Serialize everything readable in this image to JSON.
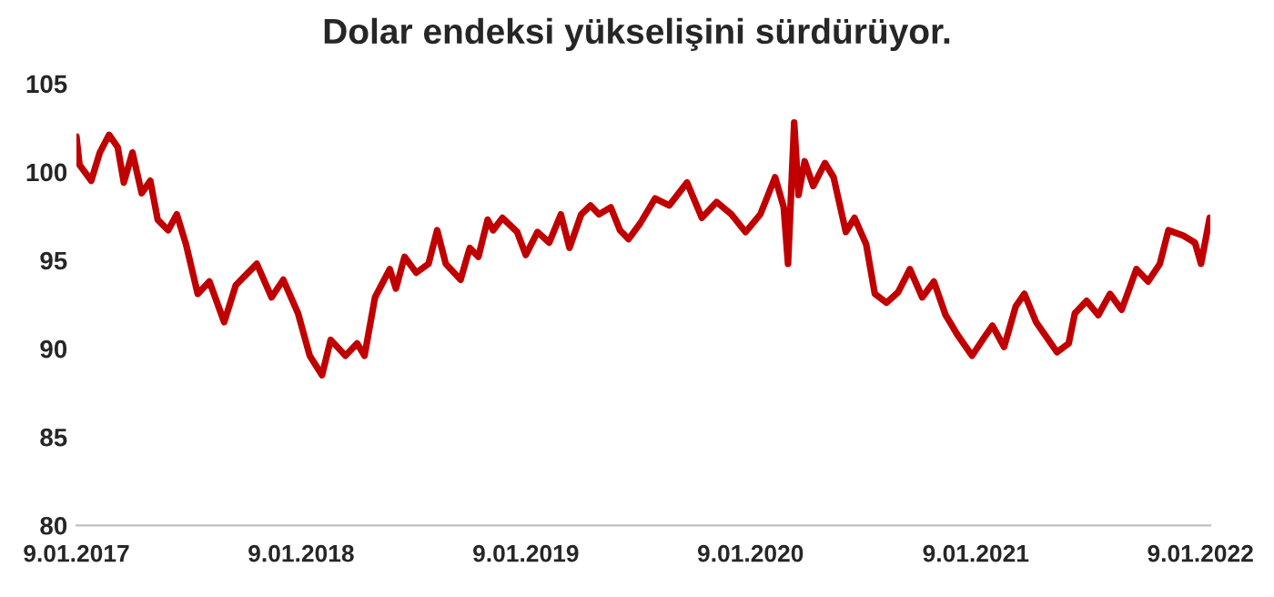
{
  "chart_data": {
    "type": "line",
    "title": "Dolar endeksi yükselişini sürdürüyor.",
    "x": [
      "2017-01-09",
      "2017-01-14",
      "2017-02-02",
      "2017-02-16",
      "2017-03-03",
      "2017-03-17",
      "2017-03-27",
      "2017-04-10",
      "2017-04-25",
      "2017-05-09",
      "2017-05-21",
      "2017-06-07",
      "2017-06-21",
      "2017-07-06",
      "2017-07-25",
      "2017-08-13",
      "2017-09-06",
      "2017-09-25",
      "2017-10-29",
      "2017-11-22",
      "2017-12-11",
      "2018-01-04",
      "2018-01-23",
      "2018-02-12",
      "2018-02-26",
      "2018-03-22",
      "2018-04-10",
      "2018-04-22",
      "2018-05-09",
      "2018-06-02",
      "2018-06-12",
      "2018-06-26",
      "2018-07-15",
      "2018-08-04",
      "2018-08-18",
      "2018-09-01",
      "2018-09-25",
      "2018-10-10",
      "2018-10-24",
      "2018-11-08",
      "2018-11-17",
      "2018-12-02",
      "2018-12-26",
      "2019-01-09",
      "2019-01-28",
      "2019-02-16",
      "2019-03-07",
      "2019-03-21",
      "2019-04-09",
      "2019-04-24",
      "2019-05-08",
      "2019-05-27",
      "2019-06-11",
      "2019-06-25",
      "2019-07-14",
      "2019-08-07",
      "2019-08-30",
      "2019-09-28",
      "2019-10-22",
      "2019-11-15",
      "2019-12-09",
      "2020-01-01",
      "2020-01-25",
      "2020-02-18",
      "2020-03-03",
      "2020-03-10",
      "2020-03-20",
      "2020-03-27",
      "2020-04-06",
      "2020-04-20",
      "2020-05-09",
      "2020-05-23",
      "2020-06-12",
      "2020-06-26",
      "2020-07-15",
      "2020-07-29",
      "2020-08-17",
      "2020-09-05",
      "2020-09-24",
      "2020-10-14",
      "2020-11-02",
      "2020-11-21",
      "2020-12-10",
      "2021-01-03",
      "2021-01-22",
      "2021-02-05",
      "2021-02-24",
      "2021-03-15",
      "2021-03-29",
      "2021-04-17",
      "2021-05-07",
      "2021-05-21",
      "2021-06-09",
      "2021-06-19",
      "2021-07-08",
      "2021-07-27",
      "2021-08-15",
      "2021-09-03",
      "2021-09-27",
      "2021-10-16",
      "2021-11-04",
      "2021-11-18",
      "2021-12-12",
      "2021-12-31",
      "2022-01-10",
      "2022-01-24"
    ],
    "series": [
      {
        "color": "#c00000",
        "values": [
          102.0,
          100.4,
          99.5,
          101.1,
          102.1,
          101.4,
          99.4,
          101.1,
          98.8,
          99.5,
          97.3,
          96.7,
          97.6,
          95.9,
          93.1,
          93.8,
          91.5,
          93.6,
          94.8,
          92.9,
          93.9,
          92.0,
          89.6,
          88.5,
          90.5,
          89.6,
          90.3,
          89.6,
          92.9,
          94.5,
          93.4,
          95.2,
          94.3,
          94.8,
          96.7,
          94.8,
          93.9,
          95.7,
          95.2,
          97.3,
          96.7,
          97.4,
          96.6,
          95.3,
          96.6,
          96.0,
          97.6,
          95.7,
          97.6,
          98.1,
          97.6,
          98.0,
          96.7,
          96.2,
          97.1,
          98.5,
          98.1,
          99.4,
          97.4,
          98.3,
          97.6,
          96.6,
          97.6,
          99.7,
          98.0,
          94.8,
          102.8,
          98.7,
          100.6,
          99.2,
          100.5,
          99.7,
          96.6,
          97.4,
          95.9,
          93.1,
          92.6,
          93.2,
          94.5,
          92.9,
          93.8,
          91.9,
          90.8,
          89.6,
          90.6,
          91.3,
          90.1,
          92.4,
          93.1,
          91.5,
          90.5,
          89.8,
          90.3,
          92.0,
          92.7,
          91.9,
          93.1,
          92.2,
          94.5,
          93.8,
          94.8,
          96.7,
          96.4,
          96.0,
          94.8,
          97.4
        ]
      }
    ],
    "xlim": [
      "2017-01-09",
      "2022-01-25"
    ],
    "xticks": [
      {
        "value": "2017-01-09",
        "label": "9.01.2017"
      },
      {
        "value": "2018-01-09",
        "label": "9.01.2018"
      },
      {
        "value": "2019-01-09",
        "label": "9.01.2019"
      },
      {
        "value": "2020-01-09",
        "label": "9.01.2020"
      },
      {
        "value": "2021-01-09",
        "label": "9.01.2021"
      },
      {
        "value": "2022-01-09",
        "label": "9.01.2022"
      }
    ],
    "ylim": [
      80,
      105
    ],
    "yticks": [
      80,
      85,
      90,
      95,
      100,
      105
    ],
    "grid": false,
    "legend": false,
    "marker": "none",
    "line_style": "solid"
  }
}
